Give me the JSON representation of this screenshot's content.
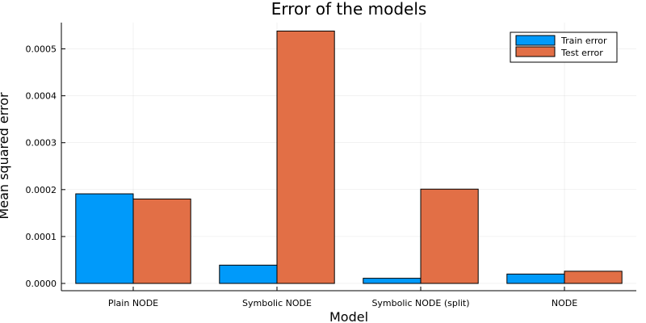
{
  "chart_data": {
    "type": "bar",
    "title": "Error of the models",
    "xlabel": "Model",
    "ylabel": "Mean squared error",
    "categories": [
      "Plain NODE",
      "Symbolic NODE",
      "Symbolic NODE (split)",
      "NODE"
    ],
    "series": [
      {
        "name": "Train error",
        "color": "#009AFA",
        "values": [
          0.000191,
          3.9e-05,
          1.1e-05,
          2e-05
        ]
      },
      {
        "name": "Test error",
        "color": "#E26F46",
        "values": [
          0.00018,
          0.000538,
          0.000201,
          2.6e-05
        ]
      }
    ],
    "ylim": [
      -1.55e-05,
      0.000556
    ],
    "yticks": [
      0.0,
      0.0001,
      0.0002,
      0.0003,
      0.0004,
      0.0005
    ],
    "ytick_labels": [
      "0.0000",
      "0.0001",
      "0.0002",
      "0.0003",
      "0.0004",
      "0.0005"
    ],
    "grid": true,
    "legend_position": "top-right"
  }
}
